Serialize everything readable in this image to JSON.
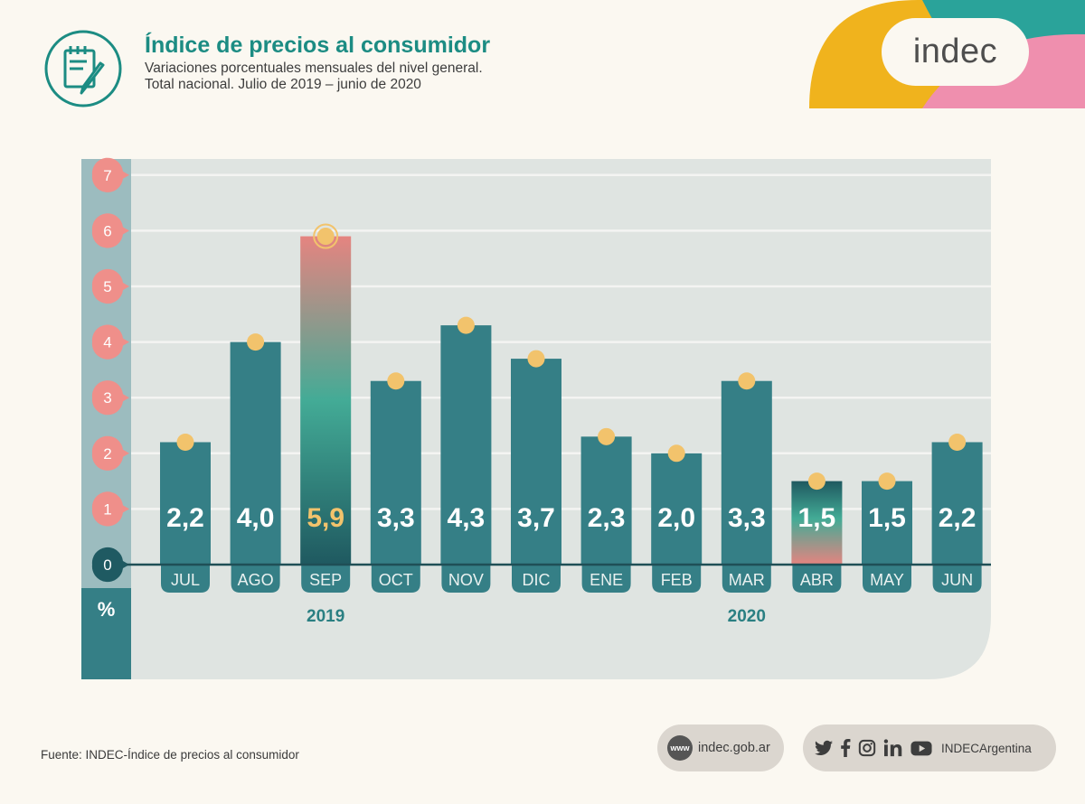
{
  "header": {
    "title": "Índice de precios al consumidor",
    "subtitle_line1": "Variaciones porcentuales mensuales del nivel general.",
    "subtitle_line2": "Total nacional. Julio de 2019 – junio de 2020",
    "icon": "notepad-pencil-icon"
  },
  "logo": {
    "text": "indec",
    "colors": {
      "yellow": "#f0b31d",
      "teal": "#2aa39a",
      "pink": "#ef8fae"
    }
  },
  "colors": {
    "bar": "#357f86",
    "plot_bg": "#dfe4e1",
    "axis_strip": "#9cbcbf",
    "axis_circle": "#ef8f8a",
    "dot": "#f2c36c",
    "label_highlight": "#f2c36c",
    "label_normal": "#ffffff",
    "year_text": "#2a7f82"
  },
  "chart_data": {
    "type": "bar",
    "categories": [
      "JUL",
      "AGO",
      "SEP",
      "OCT",
      "NOV",
      "DIC",
      "ENE",
      "FEB",
      "MAR",
      "ABR",
      "MAY",
      "JUN"
    ],
    "values": [
      2.2,
      4.0,
      5.9,
      3.3,
      4.3,
      3.7,
      2.3,
      2.0,
      3.3,
      1.5,
      1.5,
      2.2
    ],
    "value_labels": [
      "2,2",
      "4,0",
      "5,9",
      "3,3",
      "4,3",
      "3,7",
      "2,3",
      "2,0",
      "3,3",
      "1,5",
      "1,5",
      "2,2"
    ],
    "highlight": [
      "SEP",
      "ABR"
    ],
    "highlight_label": "SEP",
    "yticks": [
      0,
      1,
      2,
      3,
      4,
      5,
      6,
      7
    ],
    "ylim": [
      0,
      7
    ],
    "ylabel": "%",
    "year_labels": [
      {
        "text": "2019",
        "under": "SEP"
      },
      {
        "text": "2020",
        "under": "MAR"
      }
    ],
    "grid": true
  },
  "footer": {
    "source": "Fuente: INDEC-Índice de precios al consumidor",
    "website": "indec.gob.ar",
    "www_icon": "www",
    "social_handle": "INDECArgentina",
    "social_icons": [
      "twitter-icon",
      "facebook-icon",
      "instagram-icon",
      "linkedin-icon",
      "youtube-icon"
    ]
  }
}
